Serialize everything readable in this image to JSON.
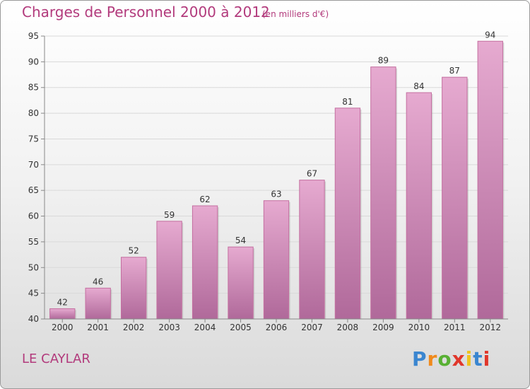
{
  "chart_data": {
    "type": "bar",
    "title": "Charges de Personnel 2000 à 2012",
    "subtitle": "(en milliers d'€)",
    "categories": [
      "2000",
      "2001",
      "2002",
      "2003",
      "2004",
      "2005",
      "2006",
      "2007",
      "2008",
      "2009",
      "2010",
      "2011",
      "2012"
    ],
    "values": [
      42,
      46,
      52,
      59,
      62,
      54,
      63,
      67,
      81,
      89,
      84,
      87,
      94
    ],
    "ylim": [
      40,
      95
    ],
    "yticks": [
      40,
      45,
      50,
      55,
      60,
      65,
      70,
      75,
      80,
      85,
      90,
      95
    ],
    "grid": true,
    "bar_color": "#c96fa4",
    "xlabel": "",
    "ylabel": ""
  },
  "commune": "LE CAYLAR",
  "logo": {
    "text": "Proxiti",
    "letter_colors": [
      "#3a86d0",
      "#f08a1c",
      "#58b033",
      "#e0372b",
      "#f0c21c",
      "#3a86d0",
      "#e0372b"
    ]
  }
}
